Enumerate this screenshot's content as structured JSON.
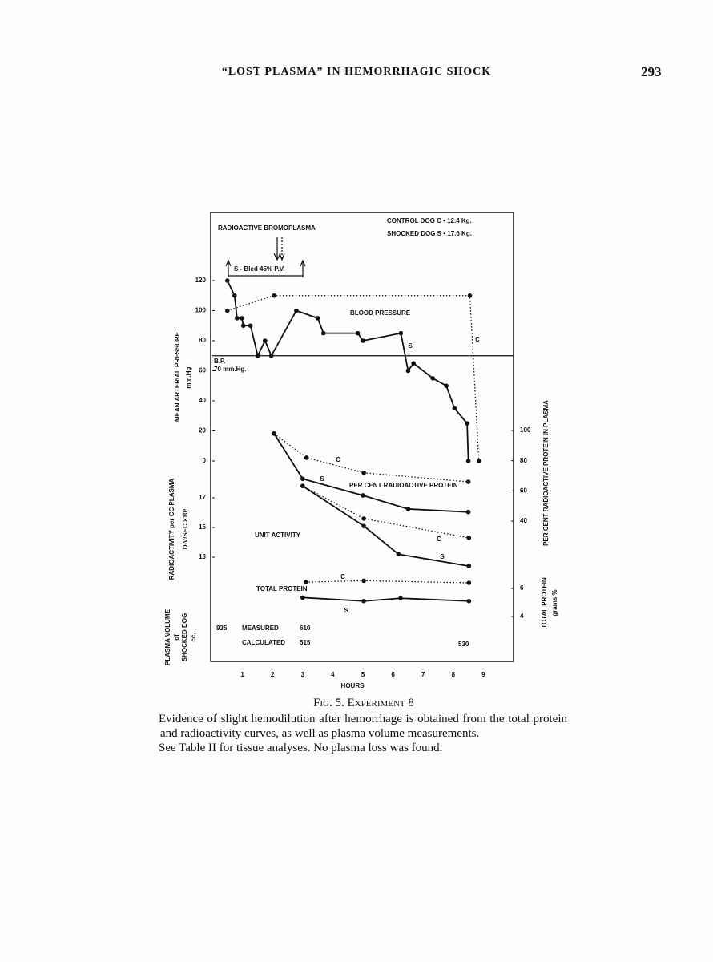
{
  "header": {
    "title": "“LOST PLASMA” IN HEMORRHAGIC SHOCK",
    "page": "293"
  },
  "chart_data": {
    "type": "line",
    "xlim": [
      0,
      10
    ],
    "xticks": [
      1,
      2,
      3,
      4,
      5,
      6,
      7,
      8,
      9
    ],
    "x_label": "HOURS",
    "panels": [
      {
        "y_label": "MEAN ARTERIAL PRESSURE",
        "y_unit": "mm.Hg.",
        "side": "left",
        "ylim": [
          0,
          120
        ],
        "yticks": [
          0,
          20,
          40,
          60,
          80,
          100,
          120
        ],
        "reference_line": 70,
        "series": [
          {
            "name": "S",
            "style": "solid",
            "color": "#111",
            "x": [
              0.5,
              0.74,
              0.82,
              0.98,
              1.03,
              1.27,
              1.51,
              1.75,
              1.96,
              2.79,
              3.5,
              3.69,
              4.83,
              5.0,
              6.26,
              6.5,
              6.68,
              7.32,
              7.77,
              8.04,
              8.46,
              8.5
            ],
            "values": [
              120,
              110,
              95,
              95,
              90,
              90,
              70,
              80,
              70,
              100,
              95,
              85,
              85,
              80,
              85,
              60,
              65,
              55,
              50,
              35,
              25,
              0
            ]
          },
          {
            "name": "C",
            "style": "dotted",
            "color": "#111",
            "x": [
              0.5,
              2.05,
              8.55,
              8.85
            ],
            "values": [
              100,
              110,
              110,
              0
            ]
          }
        ]
      },
      {
        "y_label": "PER CENT RADIOACTIVE PROTEIN IN PLASMA",
        "side": "right",
        "ylim": [
          40,
          100
        ],
        "yticks": [
          40,
          60,
          80,
          100
        ],
        "series": [
          {
            "name": "C",
            "style": "dotted",
            "color": "#111",
            "x": [
              2.05,
              3.13,
              5.03,
              8.5
            ],
            "values": [
              98,
              82,
              72,
              66
            ]
          },
          {
            "name": "S",
            "style": "solid",
            "color": "#111",
            "x": [
              2.05,
              3,
              5.0,
              6.5,
              8.5
            ],
            "values": [
              98,
              68,
              57,
              48,
              46
            ]
          }
        ]
      },
      {
        "y_label": "RADIOACTIVITY per CC PLASMA",
        "y_unit": "DIV/SEC.×10³",
        "side": "left",
        "ylim": [
          13,
          17
        ],
        "yticks": [
          13,
          15,
          17
        ],
        "series": [
          {
            "name": "C",
            "style": "dotted",
            "color": "#111",
            "x": [
              3,
              5.03,
              8.52
            ],
            "values": [
              17.8,
              15.6,
              14.3
            ]
          },
          {
            "name": "S",
            "style": "solid",
            "color": "#111",
            "x": [
              3,
              5.03,
              6.18,
              8.52
            ],
            "values": [
              17.8,
              15.1,
              13.2,
              12.4
            ]
          }
        ]
      },
      {
        "y_label": "TOTAL PROTEIN",
        "y_unit": "grams %",
        "side": "right",
        "ylim": [
          4,
          6
        ],
        "yticks": [
          4,
          6
        ],
        "series": [
          {
            "name": "C",
            "style": "dotted",
            "color": "#111",
            "x": [
              3.1,
              5.03,
              8.52
            ],
            "values": [
              6.45,
              6.55,
              6.4
            ]
          },
          {
            "name": "S",
            "style": "solid",
            "color": "#111",
            "x": [
              3,
              5.03,
              6.25,
              8.52
            ],
            "values": [
              5.35,
              5.1,
              5.3,
              5.1
            ]
          }
        ]
      }
    ],
    "annotations": [
      "RADIOACTIVE BROMOPLASMA",
      "CONTROL DOG C • 12.4 Kg.",
      "SHOCKED DOG S • 17.6 Kg.",
      "S - Bled 45% P.V.",
      "BLOOD PRESSURE",
      "B.P.",
      "70 mm.Hg.",
      "PER CENT RADIOACTIVE PROTEIN",
      "UNIT ACTIVITY",
      "TOTAL PROTEIN"
    ],
    "plasma_volume": {
      "label": [
        "PLASMA VOLUME",
        "of",
        "SHOCKED DOG",
        "cc."
      ],
      "measured_label": "MEASURED",
      "calculated_label": "CALCULATED",
      "initial": 935,
      "measured": 610,
      "calculated": 515,
      "final": 530
    }
  },
  "caption": {
    "title": "Fig. 5. Experiment 8",
    "paragraphs": [
      "Evidence of slight hemodilution after hemorrhage is obtained from the total protein and radioactivity curves, as well as plasma volume measurements.",
      "See Table II for tissue analyses. No plasma loss was found."
    ]
  }
}
